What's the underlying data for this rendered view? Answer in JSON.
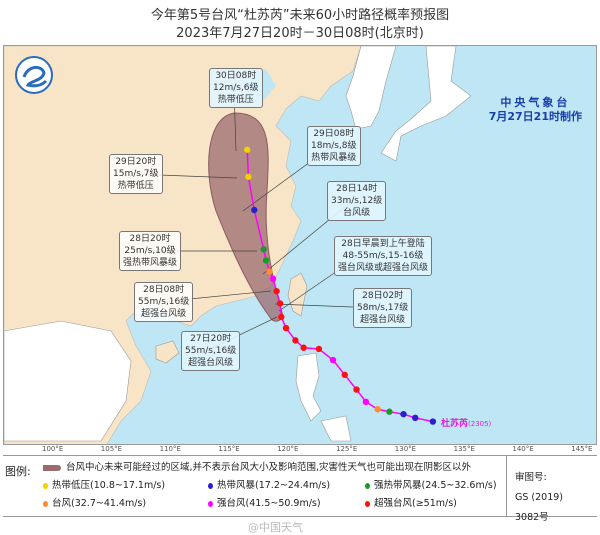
{
  "header": {
    "title": "今年第5号台风“杜苏芮”未来60小时路径概率预报图",
    "subtitle": "2023年7月27日20时－30日08时(北京时)"
  },
  "agency": {
    "name": "中央气象台",
    "issued": "7月27日21时制作"
  },
  "colors": {
    "ocean": "#bfe6f5",
    "land": "#f8e4c6",
    "cone": "#9b6b6e",
    "track_line": "#ff00ff"
  },
  "map": {
    "longitude_labels": [
      "100°E",
      "105°E",
      "110°E",
      "115°E",
      "120°E",
      "125°E",
      "130°E",
      "135°E",
      "140°E",
      "145°E"
    ],
    "typhoon_name": "杜苏芮",
    "typhoon_code": "(2305)",
    "forecast_labels": [
      {
        "time": "30日08时",
        "wind": "12m/s,6级",
        "level": "热带低压"
      },
      {
        "time": "29日20时",
        "wind": "15m/s,7级",
        "level": "热带低压"
      },
      {
        "time": "29日08时",
        "wind": "18m/s,8级",
        "level": "热带风暴级"
      },
      {
        "time": "28日14时",
        "wind": "33m/s,12级",
        "level": "台风级"
      },
      {
        "time": "28日20时",
        "wind": "25m/s,10级",
        "level": "强热带风暴级"
      },
      {
        "time": "28日早晨到上午登陆",
        "wind": "48-55m/s,15-16级",
        "level": "强台风级或超强台风级"
      },
      {
        "time": "28日08时",
        "wind": "55m/s,16级",
        "level": "超强台风级"
      },
      {
        "time": "28日02时",
        "wind": "58m/s,17级",
        "level": "超强台风级"
      },
      {
        "time": "27日20时",
        "wind": "55m/s,16级",
        "level": "超强台风级"
      }
    ],
    "track": [
      {
        "lon": 132.5,
        "lat": 12.4,
        "cat": "ts"
      },
      {
        "lon": 131,
        "lat": 12.7,
        "cat": "ts"
      },
      {
        "lon": 130,
        "lat": 13.0,
        "cat": "ts"
      },
      {
        "lon": 128.8,
        "lat": 13.2,
        "cat": "sts"
      },
      {
        "lon": 127.8,
        "lat": 13.4,
        "cat": "ty"
      },
      {
        "lon": 126.8,
        "lat": 14.0,
        "cat": "sty"
      },
      {
        "lon": 126,
        "lat": 15.0,
        "cat": "super"
      },
      {
        "lon": 125,
        "lat": 16.2,
        "cat": "super"
      },
      {
        "lon": 124,
        "lat": 17.4,
        "cat": "sty"
      },
      {
        "lon": 122.8,
        "lat": 18.3,
        "cat": "super"
      },
      {
        "lon": 121.5,
        "lat": 18.4,
        "cat": "super"
      },
      {
        "lon": 120.8,
        "lat": 19.0,
        "cat": "super"
      },
      {
        "lon": 120,
        "lat": 20.0,
        "cat": "super"
      },
      {
        "lon": 119.6,
        "lat": 20.9,
        "cat": "super"
      },
      {
        "lon": 119.5,
        "lat": 22.0,
        "cat": "super"
      },
      {
        "lon": 119.2,
        "lat": 23.0,
        "cat": "super"
      },
      {
        "lon": 118.9,
        "lat": 24.0,
        "cat": "sty"
      },
      {
        "lon": 118.6,
        "lat": 24.6,
        "cat": "ty"
      },
      {
        "lon": 118.3,
        "lat": 25.5,
        "cat": "sts"
      },
      {
        "lon": 118.1,
        "lat": 26.4,
        "cat": "sts"
      },
      {
        "lon": 117.3,
        "lat": 29.6,
        "cat": "ts"
      },
      {
        "lon": 116.8,
        "lat": 32.3,
        "cat": "td"
      },
      {
        "lon": 116.7,
        "lat": 34.5,
        "cat": "td"
      }
    ]
  },
  "legend": {
    "title": "图例:",
    "cone_desc": "台风中心未来可能经过的区域,并不表示台风大小及影响范围,灾害性天气也可能出现在阴影区以外",
    "items": [
      {
        "label": "热带低压(10.8~17.1m/s)",
        "color": "#f2d100"
      },
      {
        "label": "热带风暴(17.2~24.4m/s)",
        "color": "#2a1fd0"
      },
      {
        "label": "强热带风暴(24.5~32.6m/s)",
        "color": "#1b9a2a"
      },
      {
        "label": "台风(32.7~41.4m/s)",
        "color": "#ff8c2a"
      },
      {
        "label": "强台风(41.5~50.9m/s)",
        "color": "#ff00ff"
      },
      {
        "label": "超强台风(≥51m/s)",
        "color": "#ff1010"
      }
    ],
    "review_label": "审图号:",
    "review_number": "GS (2019) 3082号"
  },
  "watermark": "@中国天气"
}
